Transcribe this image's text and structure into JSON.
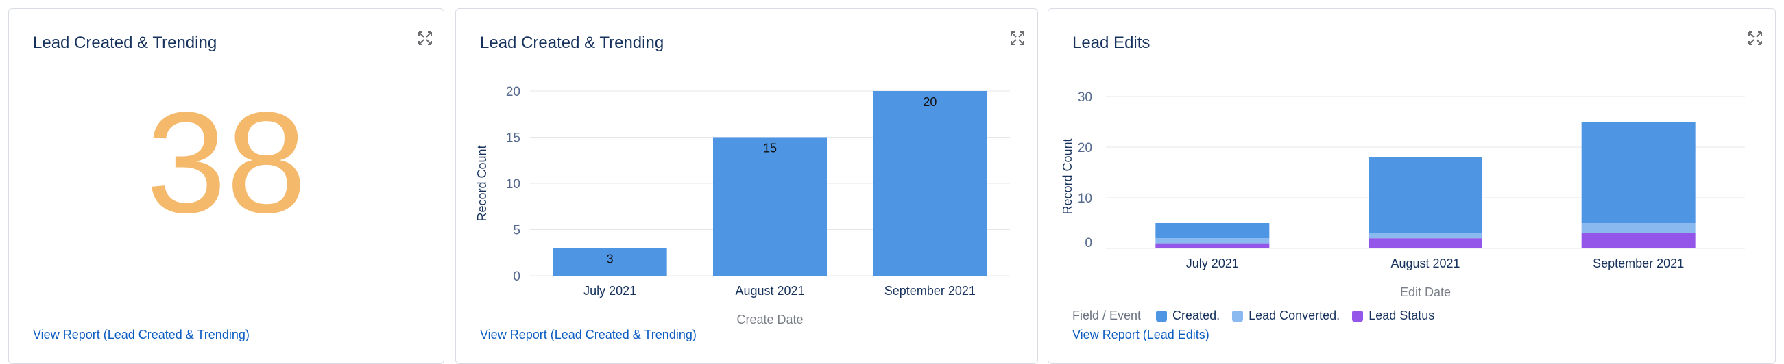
{
  "cards": [
    {
      "title": "Lead Created & Trending",
      "metric": "38",
      "metric_color": "#f5b96b",
      "link": "View Report (Lead Created & Trending)"
    },
    {
      "title": "Lead Created & Trending",
      "link": "View Report (Lead Created & Trending)"
    },
    {
      "title": "Lead Edits",
      "legend_label": "Field / Event",
      "link": "View Report (Lead Edits)"
    }
  ],
  "expand_icon": "expand-icon",
  "chart_data": [
    {
      "type": "bar",
      "categories": [
        "July 2021",
        "August 2021",
        "September 2021"
      ],
      "values": [
        3,
        15,
        20
      ],
      "data_labels": [
        "3",
        "15",
        "20"
      ],
      "xlabel": "Create Date",
      "ylabel": "Record Count",
      "yticks": [
        "0",
        "5",
        "10",
        "15",
        "20"
      ],
      "ylim": [
        0,
        20
      ],
      "color": "#4e95e4",
      "grid": true
    },
    {
      "type": "bar",
      "stacked": true,
      "categories": [
        "July 2021",
        "August 2021",
        "September 2021"
      ],
      "series": [
        {
          "name": "Lead Status",
          "values": [
            1,
            2,
            3
          ],
          "color": "#9456e8"
        },
        {
          "name": "Lead Converted.",
          "values": [
            1,
            1,
            2
          ],
          "color": "#8ab9ef"
        },
        {
          "name": "Created.",
          "values": [
            3,
            15,
            20
          ],
          "color": "#4e95e4"
        }
      ],
      "legend_order": [
        "Created.",
        "Lead Converted.",
        "Lead Status"
      ],
      "xlabel": "Edit Date",
      "ylabel": "Record Count",
      "yticks": [
        "0",
        "10",
        "20",
        "30"
      ],
      "ylim": [
        0,
        30
      ],
      "legend_position": "bottom-left",
      "grid": true
    }
  ]
}
